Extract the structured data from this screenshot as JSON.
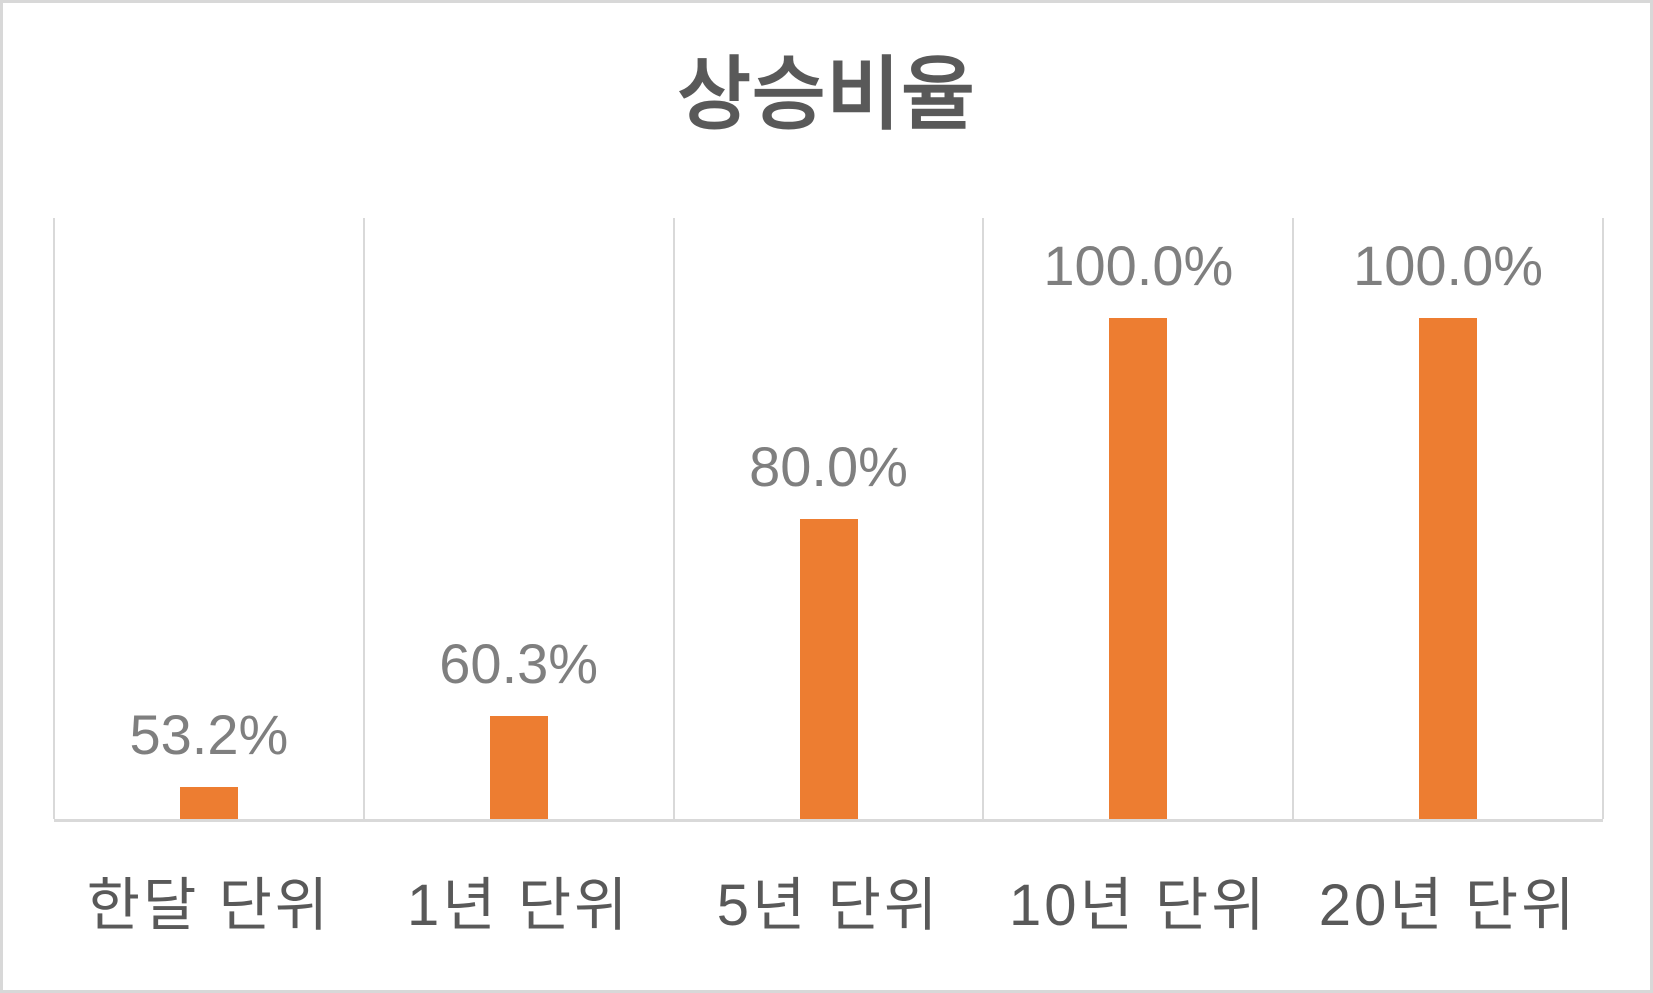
{
  "chart_data": {
    "type": "bar",
    "title": "상승비율",
    "categories": [
      "한달 단위",
      "1년 단위",
      "5년 단위",
      "10년 단위",
      "20년 단위"
    ],
    "values": [
      53.2,
      60.3,
      80.0,
      100.0,
      100.0
    ],
    "data_labels": [
      "53.2%",
      "60.3%",
      "80.0%",
      "100.0%",
      "100.0%"
    ],
    "unit": "%",
    "xlabel": "",
    "ylabel": "",
    "ylim": [
      50,
      110
    ],
    "y_axis_labels_visible": false,
    "gridlines": "vertical-category-boundaries-only",
    "legend": "none",
    "colors": {
      "bar": "#ED7D31",
      "data_label": "#7F7F7F",
      "category_label": "#595959",
      "title": "#595959",
      "gridline": "#D9D9D9",
      "axis_line": "#D9D9D9",
      "background": "#FFFFFF",
      "frame_border": "#D8D8D8"
    }
  }
}
